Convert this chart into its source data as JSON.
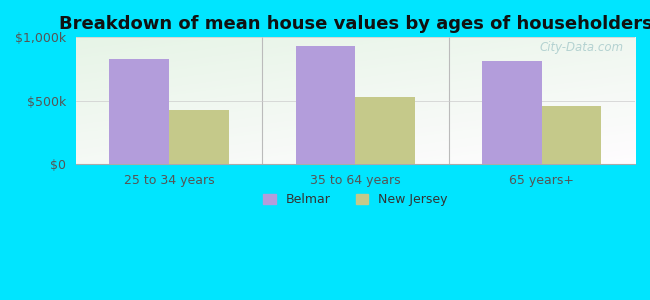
{
  "title": "Breakdown of mean house values by ages of householders",
  "categories": [
    "25 to 34 years",
    "35 to 64 years",
    "65 years+"
  ],
  "belmar_values": [
    830000,
    930000,
    810000
  ],
  "nj_values": [
    430000,
    530000,
    460000
  ],
  "belmar_color": "#b39ddb",
  "nj_color": "#c5c98a",
  "background_outer": "#00e5ff",
  "background_inner_start": "#d8f0d0",
  "background_inner_end": "#f8fef8",
  "ylim": [
    0,
    1000000
  ],
  "yticks": [
    0,
    500000,
    1000000
  ],
  "ytick_labels": [
    "$0",
    "$500k",
    "$1,000k"
  ],
  "bar_width": 0.32,
  "legend_labels": [
    "Belmar",
    "New Jersey"
  ],
  "watermark": "City-Data.com",
  "title_fontsize": 13,
  "tick_fontsize": 9,
  "legend_fontsize": 9
}
